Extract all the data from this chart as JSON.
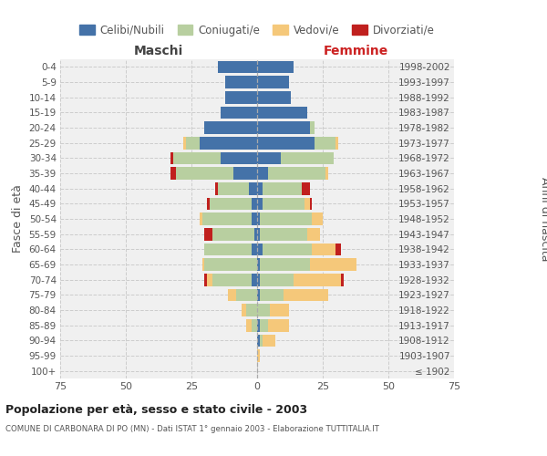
{
  "age_groups": [
    "100+",
    "95-99",
    "90-94",
    "85-89",
    "80-84",
    "75-79",
    "70-74",
    "65-69",
    "60-64",
    "55-59",
    "50-54",
    "45-49",
    "40-44",
    "35-39",
    "30-34",
    "25-29",
    "20-24",
    "15-19",
    "10-14",
    "5-9",
    "0-4"
  ],
  "birth_years": [
    "≤ 1902",
    "1903-1907",
    "1908-1912",
    "1913-1917",
    "1918-1922",
    "1923-1927",
    "1928-1932",
    "1933-1937",
    "1938-1942",
    "1943-1947",
    "1948-1952",
    "1953-1957",
    "1958-1962",
    "1963-1967",
    "1968-1972",
    "1973-1977",
    "1978-1982",
    "1983-1987",
    "1988-1992",
    "1993-1997",
    "1998-2002"
  ],
  "male": {
    "celibi": [
      0,
      0,
      0,
      0,
      0,
      0,
      2,
      0,
      2,
      1,
      2,
      2,
      3,
      9,
      14,
      22,
      20,
      14,
      12,
      12,
      15
    ],
    "coniugati": [
      0,
      0,
      0,
      2,
      4,
      8,
      15,
      20,
      18,
      16,
      19,
      16,
      12,
      22,
      18,
      5,
      0,
      0,
      0,
      0,
      0
    ],
    "vedovi": [
      0,
      0,
      0,
      2,
      2,
      3,
      2,
      1,
      0,
      0,
      1,
      0,
      0,
      0,
      0,
      1,
      0,
      0,
      0,
      0,
      0
    ],
    "divorziati": [
      0,
      0,
      0,
      0,
      0,
      0,
      1,
      0,
      0,
      3,
      0,
      1,
      1,
      2,
      1,
      0,
      0,
      0,
      0,
      0,
      0
    ]
  },
  "female": {
    "nubili": [
      0,
      0,
      1,
      1,
      0,
      1,
      1,
      1,
      2,
      1,
      1,
      2,
      2,
      4,
      9,
      22,
      20,
      19,
      13,
      12,
      14
    ],
    "coniugate": [
      0,
      0,
      1,
      3,
      5,
      9,
      13,
      19,
      19,
      18,
      20,
      16,
      15,
      22,
      20,
      8,
      2,
      0,
      0,
      0,
      0
    ],
    "vedove": [
      0,
      1,
      5,
      8,
      7,
      17,
      18,
      18,
      9,
      5,
      4,
      2,
      0,
      1,
      0,
      1,
      0,
      0,
      0,
      0,
      0
    ],
    "divorziate": [
      0,
      0,
      0,
      0,
      0,
      0,
      1,
      0,
      2,
      0,
      0,
      1,
      3,
      0,
      0,
      0,
      0,
      0,
      0,
      0,
      0
    ]
  },
  "colors": {
    "celibi": "#4472a8",
    "coniugati": "#b8cfa0",
    "vedovi": "#f5c87a",
    "divorziati": "#c0201e"
  },
  "xlim": 75,
  "title": "Popolazione per età, sesso e stato civile - 2003",
  "subtitle": "COMUNE DI CARBONARA DI PO (MN) - Dati ISTAT 1° gennaio 2003 - Elaborazione TUTTITALIA.IT",
  "ylabel_left": "Fasce di età",
  "ylabel_right": "Anni di nascita",
  "legend_labels": [
    "Celibi/Nubili",
    "Coniugati/e",
    "Vedovi/e",
    "Divorziati/e"
  ],
  "maschi_label": "Maschi",
  "femmine_label": "Femmine"
}
